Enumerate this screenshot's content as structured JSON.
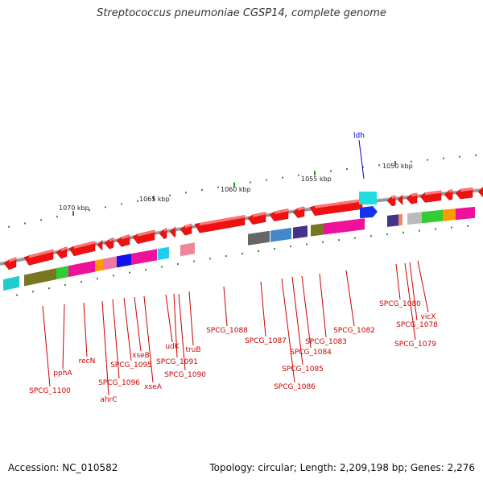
{
  "title": "Streptococcus pneumoniae CGSP14, complete genome",
  "footer": {
    "accession": "Accession: NC_010582",
    "summary": "Topology: circular; Length: 2,209,198 bp; Genes: 2,276"
  },
  "colors": {
    "gene_forward": "#ee1111",
    "gene_reverse": "#ee1111",
    "backbone": "#888888",
    "tick": "#228822",
    "label": "#cc0000",
    "highlight_label": "#0000cc"
  },
  "ticks": [
    {
      "text": "1070 kbp"
    },
    {
      "text": "1065 kbp"
    },
    {
      "text": "1060 kbp"
    },
    {
      "text": "1055 kbp"
    },
    {
      "text": "1050 kbp"
    }
  ],
  "highlight_gene": {
    "text": "ldh"
  },
  "gene_labels": [
    {
      "text": "SPCG_1100"
    },
    {
      "text": "pphA"
    },
    {
      "text": "recN"
    },
    {
      "text": "ahrC"
    },
    {
      "text": "SPCG_1096"
    },
    {
      "text": "SPCG_1095"
    },
    {
      "text": "xseB"
    },
    {
      "text": "xseA"
    },
    {
      "text": "udK"
    },
    {
      "text": "SPCG_1091"
    },
    {
      "text": "SPCG_1090"
    },
    {
      "text": "truB"
    },
    {
      "text": "SPCG_1088"
    },
    {
      "text": "SPCG_1087"
    },
    {
      "text": "SPCG_1086"
    },
    {
      "text": "SPCG_1085"
    },
    {
      "text": "SPCG_1084"
    },
    {
      "text": "SPCG_1083"
    },
    {
      "text": "SPCG_1082"
    },
    {
      "text": "SPCG_1080"
    },
    {
      "text": "SPCG_1079"
    },
    {
      "text": "SPCG_1078"
    },
    {
      "text": "vicX"
    }
  ]
}
